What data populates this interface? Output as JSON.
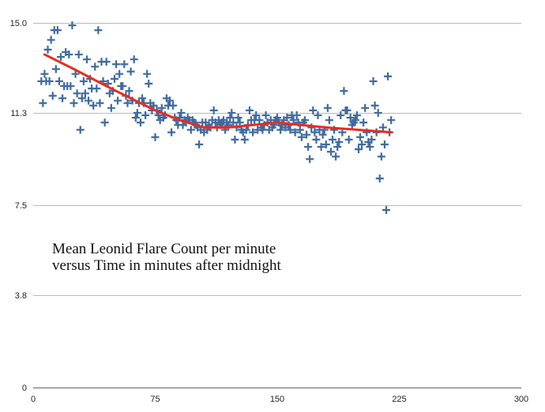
{
  "chart_data": {
    "type": "scatter",
    "title": "",
    "xlabel": "",
    "ylabel": "",
    "xlim": [
      0,
      300
    ],
    "ylim": [
      0,
      15
    ],
    "x_ticks": [
      "0",
      "75",
      "150",
      "225",
      "300"
    ],
    "y_ticks": [
      "0",
      "3.8",
      "7.5",
      "11.3",
      "15.0"
    ],
    "annotation": [
      "Mean Leonid Flare Count per minute",
      "versus Time in minutes after midnight"
    ],
    "grid": "horizontal",
    "marker": "plus",
    "colors": {
      "points": "#3e6aa0",
      "trend": "#ee2a1a",
      "grid": "#b9b9b9"
    },
    "series": [
      {
        "points": [
          [
            5,
            12.6
          ],
          [
            6,
            11.7
          ],
          [
            7,
            12.9
          ],
          [
            8,
            12.6
          ],
          [
            9,
            13.9
          ],
          [
            10,
            12.6
          ],
          [
            11,
            14.3
          ],
          [
            12,
            12.0
          ],
          [
            13,
            14.7
          ],
          [
            14,
            13.1
          ],
          [
            15,
            14.7
          ],
          [
            16,
            12.6
          ],
          [
            17,
            13.6
          ],
          [
            18,
            11.9
          ],
          [
            19,
            12.4
          ],
          [
            20,
            13.8
          ],
          [
            21,
            12.4
          ],
          [
            22,
            13.7
          ],
          [
            23,
            12.4
          ],
          [
            24,
            14.9
          ],
          [
            25,
            11.7
          ],
          [
            26,
            12.9
          ],
          [
            27,
            12.1
          ],
          [
            28,
            13.7
          ],
          [
            29,
            10.6
          ],
          [
            30,
            11.9
          ],
          [
            31,
            12.6
          ],
          [
            32,
            12.1
          ],
          [
            33,
            13.5
          ],
          [
            34,
            11.8
          ],
          [
            35,
            12.7
          ],
          [
            36,
            12.3
          ],
          [
            37,
            11.6
          ],
          [
            38,
            13.2
          ],
          [
            39,
            12.3
          ],
          [
            40,
            14.7
          ],
          [
            41,
            11.7
          ],
          [
            42,
            13.4
          ],
          [
            43,
            12.6
          ],
          [
            44,
            10.9
          ],
          [
            45,
            13.4
          ],
          [
            46,
            12.5
          ],
          [
            47,
            12.1
          ],
          [
            48,
            11.5
          ],
          [
            49,
            12.2
          ],
          [
            50,
            12.7
          ],
          [
            51,
            13.3
          ],
          [
            52,
            11.8
          ],
          [
            53,
            12.9
          ],
          [
            54,
            12.4
          ],
          [
            55,
            12.4
          ],
          [
            56,
            13.3
          ],
          [
            57,
            12.0
          ],
          [
            58,
            11.7
          ],
          [
            59,
            12.2
          ],
          [
            60,
            13.0
          ],
          [
            61,
            11.8
          ],
          [
            62,
            13.5
          ],
          [
            63,
            11.1
          ],
          [
            64,
            11.3
          ],
          [
            65,
            11.7
          ],
          [
            66,
            10.9
          ],
          [
            67,
            11.9
          ],
          [
            68,
            11.7
          ],
          [
            69,
            11.2
          ],
          [
            70,
            12.9
          ],
          [
            71,
            12.5
          ],
          [
            72,
            11.7
          ],
          [
            73,
            11.4
          ],
          [
            74,
            11.6
          ],
          [
            75,
            10.3
          ],
          [
            76,
            11.4
          ],
          [
            77,
            11.2
          ],
          [
            78,
            11.0
          ],
          [
            79,
            11.5
          ],
          [
            80,
            11.1
          ],
          [
            81,
            11.2
          ],
          [
            82,
            11.9
          ],
          [
            83,
            11.6
          ],
          [
            84,
            11.8
          ],
          [
            85,
            10.5
          ],
          [
            86,
            11.6
          ],
          [
            87,
            11.1
          ],
          [
            88,
            11.0
          ],
          [
            89,
            10.8
          ],
          [
            90,
            11.1
          ],
          [
            91,
            11.3
          ],
          [
            92,
            10.8
          ],
          [
            93,
            11.0
          ],
          [
            94,
            10.9
          ],
          [
            95,
            11.1
          ],
          [
            96,
            11.0
          ],
          [
            97,
            10.6
          ],
          [
            98,
            11.0
          ],
          [
            99,
            10.9
          ],
          [
            100,
            10.8
          ],
          [
            101,
            10.7
          ],
          [
            102,
            10.0
          ],
          [
            103,
            10.6
          ],
          [
            104,
            10.9
          ],
          [
            105,
            10.5
          ],
          [
            106,
            10.9
          ],
          [
            107,
            10.6
          ],
          [
            108,
            10.8
          ],
          [
            109,
            10.7
          ],
          [
            110,
            11.0
          ],
          [
            111,
            11.4
          ],
          [
            112,
            10.9
          ],
          [
            113,
            10.7
          ],
          [
            114,
            11.0
          ],
          [
            115,
            10.8
          ],
          [
            116,
            10.9
          ],
          [
            117,
            11.0
          ],
          [
            118,
            10.6
          ],
          [
            119,
            10.9
          ],
          [
            120,
            10.8
          ],
          [
            121,
            11.1
          ],
          [
            122,
            11.3
          ],
          [
            123,
            10.9
          ],
          [
            124,
            10.2
          ],
          [
            125,
            10.7
          ],
          [
            126,
            11.1
          ],
          [
            127,
            10.9
          ],
          [
            128,
            10.6
          ],
          [
            129,
            10.5
          ],
          [
            130,
            10.2
          ],
          [
            131,
            10.6
          ],
          [
            132,
            10.8
          ],
          [
            133,
            11.4
          ],
          [
            134,
            11.0
          ],
          [
            135,
            10.5
          ],
          [
            136,
            11.0
          ],
          [
            137,
            11.2
          ],
          [
            138,
            10.6
          ],
          [
            139,
            11.0
          ],
          [
            140,
            10.7
          ],
          [
            141,
            10.6
          ],
          [
            142,
            10.8
          ],
          [
            143,
            11.2
          ],
          [
            144,
            10.9
          ],
          [
            145,
            10.6
          ],
          [
            146,
            11.0
          ],
          [
            147,
            10.7
          ],
          [
            148,
            10.8
          ],
          [
            149,
            11.0
          ],
          [
            150,
            11.1
          ],
          [
            151,
            10.9
          ],
          [
            152,
            10.6
          ],
          [
            153,
            10.8
          ],
          [
            154,
            11.0
          ],
          [
            155,
            10.7
          ],
          [
            156,
            11.1
          ],
          [
            157,
            10.8
          ],
          [
            158,
            10.6
          ],
          [
            159,
            11.2
          ],
          [
            160,
            11.0
          ],
          [
            161,
            10.5
          ],
          [
            162,
            11.2
          ],
          [
            163,
            10.9
          ],
          [
            164,
            10.6
          ],
          [
            165,
            10.3
          ],
          [
            166,
            10.9
          ],
          [
            167,
            11.0
          ],
          [
            168,
            10.4
          ],
          [
            169,
            9.9
          ],
          [
            170,
            9.4
          ],
          [
            171,
            10.7
          ],
          [
            172,
            11.4
          ],
          [
            173,
            10.5
          ],
          [
            174,
            10.2
          ],
          [
            175,
            11.2
          ],
          [
            176,
            10.6
          ],
          [
            177,
            9.9
          ],
          [
            178,
            10.4
          ],
          [
            179,
            10.6
          ],
          [
            180,
            10.0
          ],
          [
            181,
            11.5
          ],
          [
            182,
            11.0
          ],
          [
            183,
            9.7
          ],
          [
            184,
            10.2
          ],
          [
            185,
            10.6
          ],
          [
            186,
            9.5
          ],
          [
            187,
            9.9
          ],
          [
            188,
            10.1
          ],
          [
            189,
            11.2
          ],
          [
            190,
            10.5
          ],
          [
            191,
            12.2
          ],
          [
            192,
            11.4
          ],
          [
            193,
            11.4
          ],
          [
            194,
            10.2
          ],
          [
            195,
            11.1
          ],
          [
            196,
            10.8
          ],
          [
            197,
            10.9
          ],
          [
            198,
            11.0
          ],
          [
            199,
            11.2
          ],
          [
            200,
            9.8
          ],
          [
            201,
            10.3
          ],
          [
            202,
            10.0
          ],
          [
            203,
            10.9
          ],
          [
            204,
            11.5
          ],
          [
            205,
            10.5
          ],
          [
            206,
            10.1
          ],
          [
            207,
            9.9
          ],
          [
            208,
            10.2
          ],
          [
            209,
            12.6
          ],
          [
            210,
            11.6
          ],
          [
            211,
            10.5
          ],
          [
            212,
            11.3
          ],
          [
            213,
            8.6
          ],
          [
            214,
            9.5
          ],
          [
            215,
            10.7
          ],
          [
            216,
            10.0
          ],
          [
            217,
            7.3
          ],
          [
            218,
            12.8
          ],
          [
            219,
            10.5
          ],
          [
            220,
            11.0
          ]
        ]
      }
    ],
    "trend": [
      [
        7,
        13.7
      ],
      [
        25,
        13.1
      ],
      [
        45,
        12.4
      ],
      [
        60,
        11.9
      ],
      [
        75,
        11.4
      ],
      [
        90,
        11.0
      ],
      [
        105,
        10.7
      ],
      [
        120,
        10.7
      ],
      [
        135,
        10.8
      ],
      [
        150,
        10.9
      ],
      [
        165,
        10.8
      ],
      [
        180,
        10.7
      ],
      [
        200,
        10.6
      ],
      [
        220,
        10.5
      ]
    ]
  }
}
